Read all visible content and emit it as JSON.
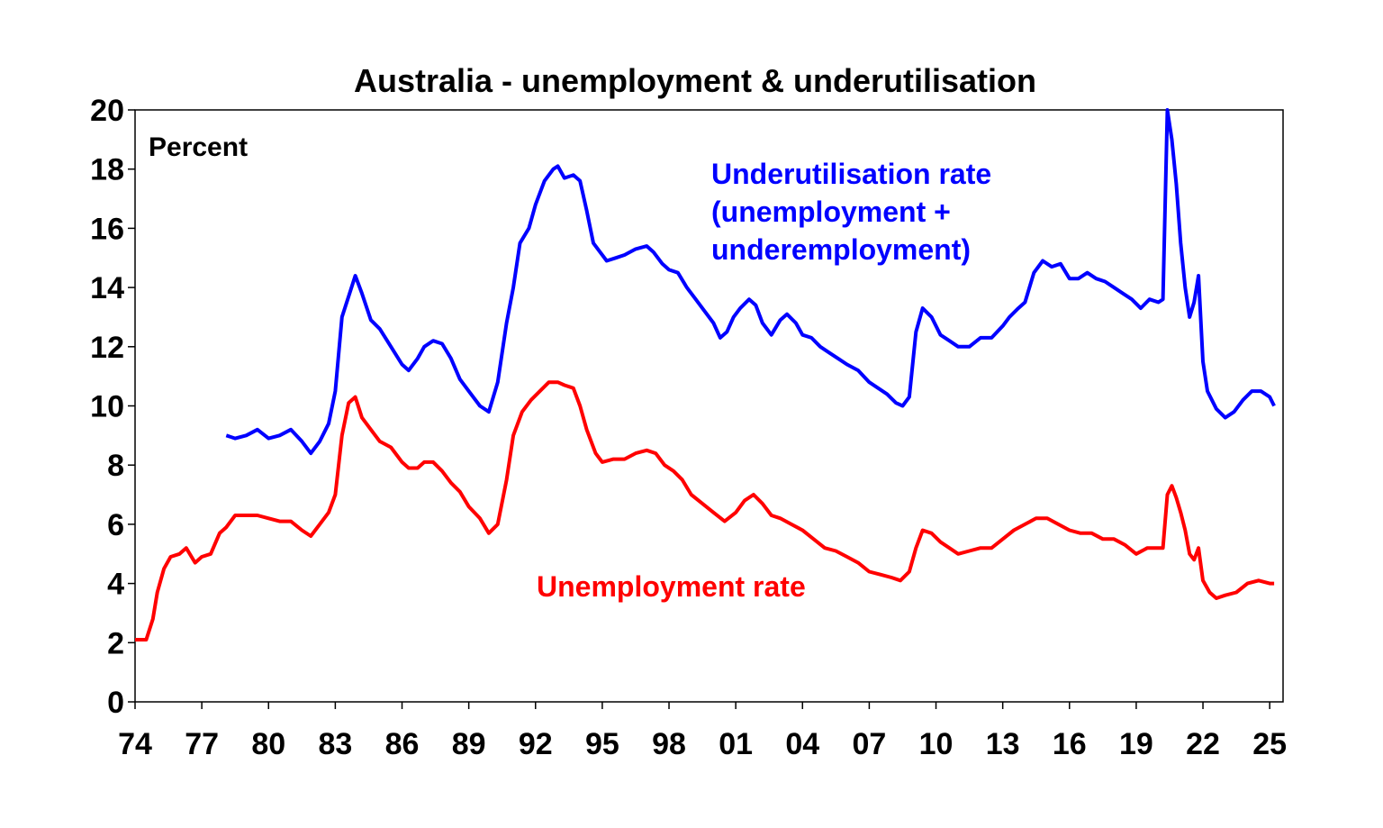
{
  "chart_data": {
    "type": "line",
    "title": "Australia - unemployment & underutilisation",
    "unit_label": "Percent",
    "xlabel": "",
    "ylabel": "",
    "ylim": [
      0,
      20
    ],
    "xlim": [
      1974,
      2025.6
    ],
    "yticks": [
      0,
      2,
      4,
      6,
      8,
      10,
      12,
      14,
      16,
      18,
      20
    ],
    "xticks": [
      "74",
      "77",
      "80",
      "83",
      "86",
      "89",
      "92",
      "95",
      "98",
      "01",
      "04",
      "07",
      "10",
      "13",
      "16",
      "19",
      "22",
      "25"
    ],
    "grid": false,
    "series": [
      {
        "name": "Underutilisation rate (unemployment + underemployment)",
        "label_lines": [
          "Underutilisation rate",
          "(unemployment +",
          "underemployment)"
        ],
        "color": "#0000ff",
        "x": [
          1978.1,
          1978.5,
          1979.0,
          1979.5,
          1980.0,
          1980.5,
          1981.0,
          1981.5,
          1981.9,
          1982.3,
          1982.7,
          1983.0,
          1983.3,
          1983.6,
          1983.9,
          1984.2,
          1984.6,
          1985.0,
          1985.5,
          1986.0,
          1986.3,
          1986.7,
          1987.0,
          1987.4,
          1987.8,
          1988.2,
          1988.6,
          1989.0,
          1989.5,
          1989.9,
          1990.3,
          1990.7,
          1991.0,
          1991.3,
          1991.7,
          1992.0,
          1992.4,
          1992.8,
          1993.0,
          1993.3,
          1993.7,
          1994.0,
          1994.3,
          1994.6,
          1994.9,
          1995.2,
          1995.6,
          1996.0,
          1996.5,
          1997.0,
          1997.3,
          1997.7,
          1998.0,
          1998.4,
          1998.8,
          1999.2,
          1999.6,
          2000.0,
          2000.3,
          2000.6,
          2000.9,
          2001.2,
          2001.6,
          2001.9,
          2002.2,
          2002.6,
          2003.0,
          2003.3,
          2003.7,
          2004.0,
          2004.4,
          2004.8,
          2005.2,
          2005.6,
          2006.0,
          2006.5,
          2007.0,
          2007.4,
          2007.8,
          2008.2,
          2008.5,
          2008.8,
          2009.1,
          2009.4,
          2009.8,
          2010.2,
          2010.6,
          2011.0,
          2011.5,
          2012.0,
          2012.5,
          2013.0,
          2013.3,
          2013.7,
          2014.0,
          2014.4,
          2014.8,
          2015.2,
          2015.6,
          2016.0,
          2016.4,
          2016.8,
          2017.2,
          2017.6,
          2018.0,
          2018.4,
          2018.8,
          2019.2,
          2019.6,
          2020.0,
          2020.2,
          2020.4,
          2020.6,
          2020.8,
          2021.0,
          2021.2,
          2021.4,
          2021.6,
          2021.8,
          2022.0,
          2022.2,
          2022.6,
          2023.0,
          2023.4,
          2023.8,
          2024.2,
          2024.6,
          2025.0,
          2025.2
        ],
        "y": [
          9.0,
          8.9,
          9.0,
          9.2,
          8.9,
          9.0,
          9.2,
          8.8,
          8.4,
          8.8,
          9.4,
          10.5,
          13.0,
          13.7,
          14.4,
          13.8,
          12.9,
          12.6,
          12.0,
          11.4,
          11.2,
          11.6,
          12.0,
          12.2,
          12.1,
          11.6,
          10.9,
          10.5,
          10.0,
          9.8,
          10.8,
          12.8,
          14.0,
          15.5,
          16.0,
          16.8,
          17.6,
          18.0,
          18.1,
          17.7,
          17.8,
          17.6,
          16.6,
          15.5,
          15.2,
          14.9,
          15.0,
          15.1,
          15.3,
          15.4,
          15.2,
          14.8,
          14.6,
          14.5,
          14.0,
          13.6,
          13.2,
          12.8,
          12.3,
          12.5,
          13.0,
          13.3,
          13.6,
          13.4,
          12.8,
          12.4,
          12.9,
          13.1,
          12.8,
          12.4,
          12.3,
          12.0,
          11.8,
          11.6,
          11.4,
          11.2,
          10.8,
          10.6,
          10.4,
          10.1,
          10.0,
          10.3,
          12.5,
          13.3,
          13.0,
          12.4,
          12.2,
          12.0,
          12.0,
          12.3,
          12.3,
          12.7,
          13.0,
          13.3,
          13.5,
          14.5,
          14.9,
          14.7,
          14.8,
          14.3,
          14.3,
          14.5,
          14.3,
          14.2,
          14.0,
          13.8,
          13.6,
          13.3,
          13.6,
          13.5,
          13.6,
          20.0,
          19.0,
          17.5,
          15.5,
          14.0,
          13.0,
          13.5,
          14.4,
          11.5,
          10.5,
          9.9,
          9.6,
          9.8,
          10.2,
          10.5,
          10.5,
          10.3,
          10.0
        ]
      },
      {
        "name": "Unemployment rate",
        "label_lines": [
          "Unemployment rate"
        ],
        "color": "#ff0000",
        "x": [
          1974.0,
          1974.5,
          1974.8,
          1975.0,
          1975.3,
          1975.6,
          1976.0,
          1976.3,
          1976.7,
          1977.0,
          1977.4,
          1977.8,
          1978.1,
          1978.5,
          1979.0,
          1979.5,
          1980.0,
          1980.5,
          1981.0,
          1981.5,
          1981.9,
          1982.3,
          1982.7,
          1983.0,
          1983.3,
          1983.6,
          1983.9,
          1984.2,
          1984.6,
          1985.0,
          1985.5,
          1986.0,
          1986.3,
          1986.7,
          1987.0,
          1987.4,
          1987.8,
          1988.2,
          1988.6,
          1989.0,
          1989.5,
          1989.9,
          1990.3,
          1990.7,
          1991.0,
          1991.4,
          1991.8,
          1992.2,
          1992.6,
          1993.0,
          1993.3,
          1993.7,
          1994.0,
          1994.3,
          1994.7,
          1995.0,
          1995.5,
          1996.0,
          1996.5,
          1997.0,
          1997.4,
          1997.8,
          1998.2,
          1998.6,
          1999.0,
          1999.5,
          2000.0,
          2000.5,
          2001.0,
          2001.4,
          2001.8,
          2002.2,
          2002.6,
          2003.0,
          2003.5,
          2004.0,
          2004.5,
          2005.0,
          2005.5,
          2006.0,
          2006.5,
          2007.0,
          2007.5,
          2008.0,
          2008.4,
          2008.8,
          2009.1,
          2009.4,
          2009.8,
          2010.2,
          2010.6,
          2011.0,
          2011.5,
          2012.0,
          2012.5,
          2013.0,
          2013.5,
          2014.0,
          2014.5,
          2015.0,
          2015.5,
          2016.0,
          2016.5,
          2017.0,
          2017.5,
          2018.0,
          2018.5,
          2019.0,
          2019.5,
          2020.0,
          2020.2,
          2020.4,
          2020.6,
          2020.8,
          2021.0,
          2021.2,
          2021.4,
          2021.6,
          2021.8,
          2022.0,
          2022.3,
          2022.6,
          2023.0,
          2023.5,
          2024.0,
          2024.5,
          2025.0,
          2025.2
        ],
        "y": [
          2.1,
          2.1,
          2.8,
          3.7,
          4.5,
          4.9,
          5.0,
          5.2,
          4.7,
          4.9,
          5.0,
          5.7,
          5.9,
          6.3,
          6.3,
          6.3,
          6.2,
          6.1,
          6.1,
          5.8,
          5.6,
          6.0,
          6.4,
          7.0,
          9.0,
          10.1,
          10.3,
          9.6,
          9.2,
          8.8,
          8.6,
          8.1,
          7.9,
          7.9,
          8.1,
          8.1,
          7.8,
          7.4,
          7.1,
          6.6,
          6.2,
          5.7,
          6.0,
          7.5,
          9.0,
          9.8,
          10.2,
          10.5,
          10.8,
          10.8,
          10.7,
          10.6,
          10.0,
          9.2,
          8.4,
          8.1,
          8.2,
          8.2,
          8.4,
          8.5,
          8.4,
          8.0,
          7.8,
          7.5,
          7.0,
          6.7,
          6.4,
          6.1,
          6.4,
          6.8,
          7.0,
          6.7,
          6.3,
          6.2,
          6.0,
          5.8,
          5.5,
          5.2,
          5.1,
          4.9,
          4.7,
          4.4,
          4.3,
          4.2,
          4.1,
          4.4,
          5.2,
          5.8,
          5.7,
          5.4,
          5.2,
          5.0,
          5.1,
          5.2,
          5.2,
          5.5,
          5.8,
          6.0,
          6.2,
          6.2,
          6.0,
          5.8,
          5.7,
          5.7,
          5.5,
          5.5,
          5.3,
          5.0,
          5.2,
          5.2,
          5.2,
          7.0,
          7.3,
          6.9,
          6.4,
          5.8,
          5.0,
          4.8,
          5.2,
          4.1,
          3.7,
          3.5,
          3.6,
          3.7,
          4.0,
          4.1,
          4.0,
          4.0
        ]
      }
    ]
  }
}
